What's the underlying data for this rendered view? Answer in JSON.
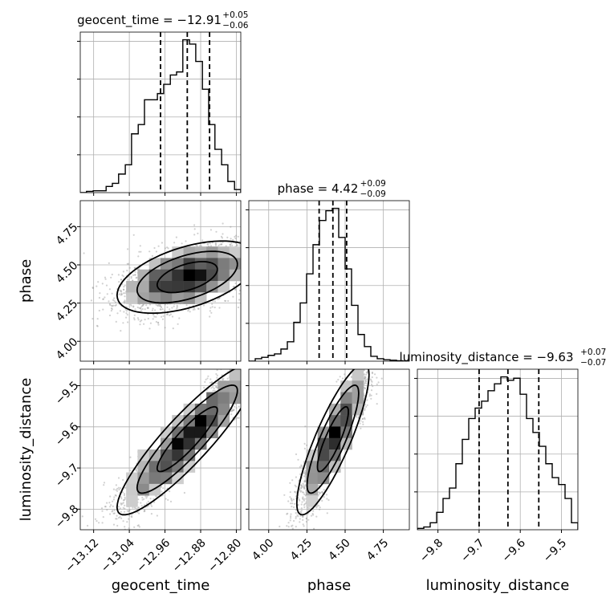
{
  "chart_data": {
    "type": "corner",
    "grid": true,
    "parameters": [
      {
        "name": "geocent_time",
        "axis_label": "geocent_time",
        "range": [
          -13.15,
          -12.79
        ],
        "ticks": [
          -13.12,
          -13.04,
          -12.96,
          -12.88,
          -12.8
        ],
        "tick_labels": [
          "−13.12",
          "−13.04",
          "−12.96",
          "−12.88",
          "−12.80"
        ],
        "title": {
          "prefix": "geocent_time = ",
          "value": "−12.91",
          "upper": "+0.05",
          "lower": "−0.06"
        },
        "quantiles": [
          -12.97,
          -12.91,
          -12.86
        ],
        "histogram": {
          "bin_edges": [
            -13.15,
            -13.136,
            -13.121,
            -13.107,
            -13.092,
            -13.078,
            -13.064,
            -13.049,
            -13.035,
            -13.02,
            -13.006,
            -12.992,
            -12.977,
            -12.963,
            -12.948,
            -12.934,
            -12.92,
            -12.905,
            -12.891,
            -12.876,
            -12.862,
            -12.848,
            -12.833,
            -12.819,
            -12.804,
            -12.79
          ],
          "counts": [
            0,
            2,
            3,
            3,
            10,
            15,
            30,
            45,
            95,
            110,
            150,
            150,
            160,
            175,
            190,
            195,
            247,
            240,
            212,
            167,
            110,
            70,
            45,
            18,
            5
          ]
        }
      },
      {
        "name": "phase",
        "axis_label": "phase",
        "range": [
          3.87,
          4.92
        ],
        "ticks": [
          4.0,
          4.25,
          4.5,
          4.75
        ],
        "tick_labels": [
          "4.00",
          "4.25",
          "4.50",
          "4.75"
        ],
        "title": {
          "prefix": "phase = ",
          "value": "4.42",
          "upper": "+0.09",
          "lower": "−0.09"
        },
        "quantiles": [
          4.33,
          4.42,
          4.51
        ],
        "histogram": {
          "bin_edges": [
            3.87,
            3.912,
            3.954,
            3.996,
            4.038,
            4.08,
            4.122,
            4.164,
            4.206,
            4.248,
            4.29,
            4.332,
            4.374,
            4.416,
            4.458,
            4.5,
            4.542,
            4.584,
            4.626,
            4.668,
            4.71,
            4.752,
            4.794,
            4.836,
            4.878,
            4.92
          ],
          "counts": [
            0,
            5,
            8,
            12,
            15,
            25,
            40,
            80,
            120,
            180,
            240,
            290,
            310,
            315,
            255,
            190,
            115,
            55,
            30,
            10,
            5,
            3,
            2,
            1,
            0
          ]
        }
      },
      {
        "name": "luminosity_distance",
        "axis_label": "luminosity_distance",
        "range": [
          -9.85,
          -9.46
        ],
        "ticks": [
          -9.8,
          -9.7,
          -9.6,
          -9.5
        ],
        "tick_labels": [
          "−9.8",
          "−9.7",
          "−9.6",
          "−9.5"
        ],
        "title": {
          "prefix": "luminosity_distance = ",
          "value": "−9.63",
          "upper": "+0.07",
          "lower": "−0.07"
        },
        "quantiles": [
          -9.7,
          -9.63,
          -9.555
        ],
        "histogram": {
          "bin_edges": [
            -9.85,
            -9.8344,
            -9.8188,
            -9.8032,
            -9.7876,
            -9.772,
            -9.7564,
            -9.7408,
            -9.7252,
            -9.7096,
            -9.694,
            -9.6784,
            -9.6628,
            -9.6472,
            -9.6316,
            -9.616,
            -9.6004,
            -9.5848,
            -9.5692,
            -9.5536,
            -9.538,
            -9.5224,
            -9.5068,
            -9.4912,
            -9.4756,
            -9.46
          ],
          "counts": [
            2,
            4,
            10,
            25,
            45,
            60,
            95,
            130,
            160,
            175,
            185,
            200,
            210,
            220,
            215,
            218,
            195,
            160,
            140,
            120,
            95,
            75,
            65,
            45,
            10
          ]
        }
      }
    ],
    "pairs": [
      {
        "x": "geocent_time",
        "y": "phase",
        "correlation": 0.5,
        "mean": [
          -12.91,
          4.42
        ],
        "std": [
          0.06,
          0.09
        ],
        "seed": 11
      },
      {
        "x": "geocent_time",
        "y": "luminosity_distance",
        "correlation": 0.9,
        "mean": [
          -12.91,
          -9.63
        ],
        "std": [
          0.06,
          0.07
        ],
        "seed": 23
      },
      {
        "x": "phase",
        "y": "luminosity_distance",
        "correlation": 0.85,
        "mean": [
          4.42,
          -9.63
        ],
        "std": [
          0.09,
          0.07
        ],
        "seed": 37
      }
    ]
  }
}
